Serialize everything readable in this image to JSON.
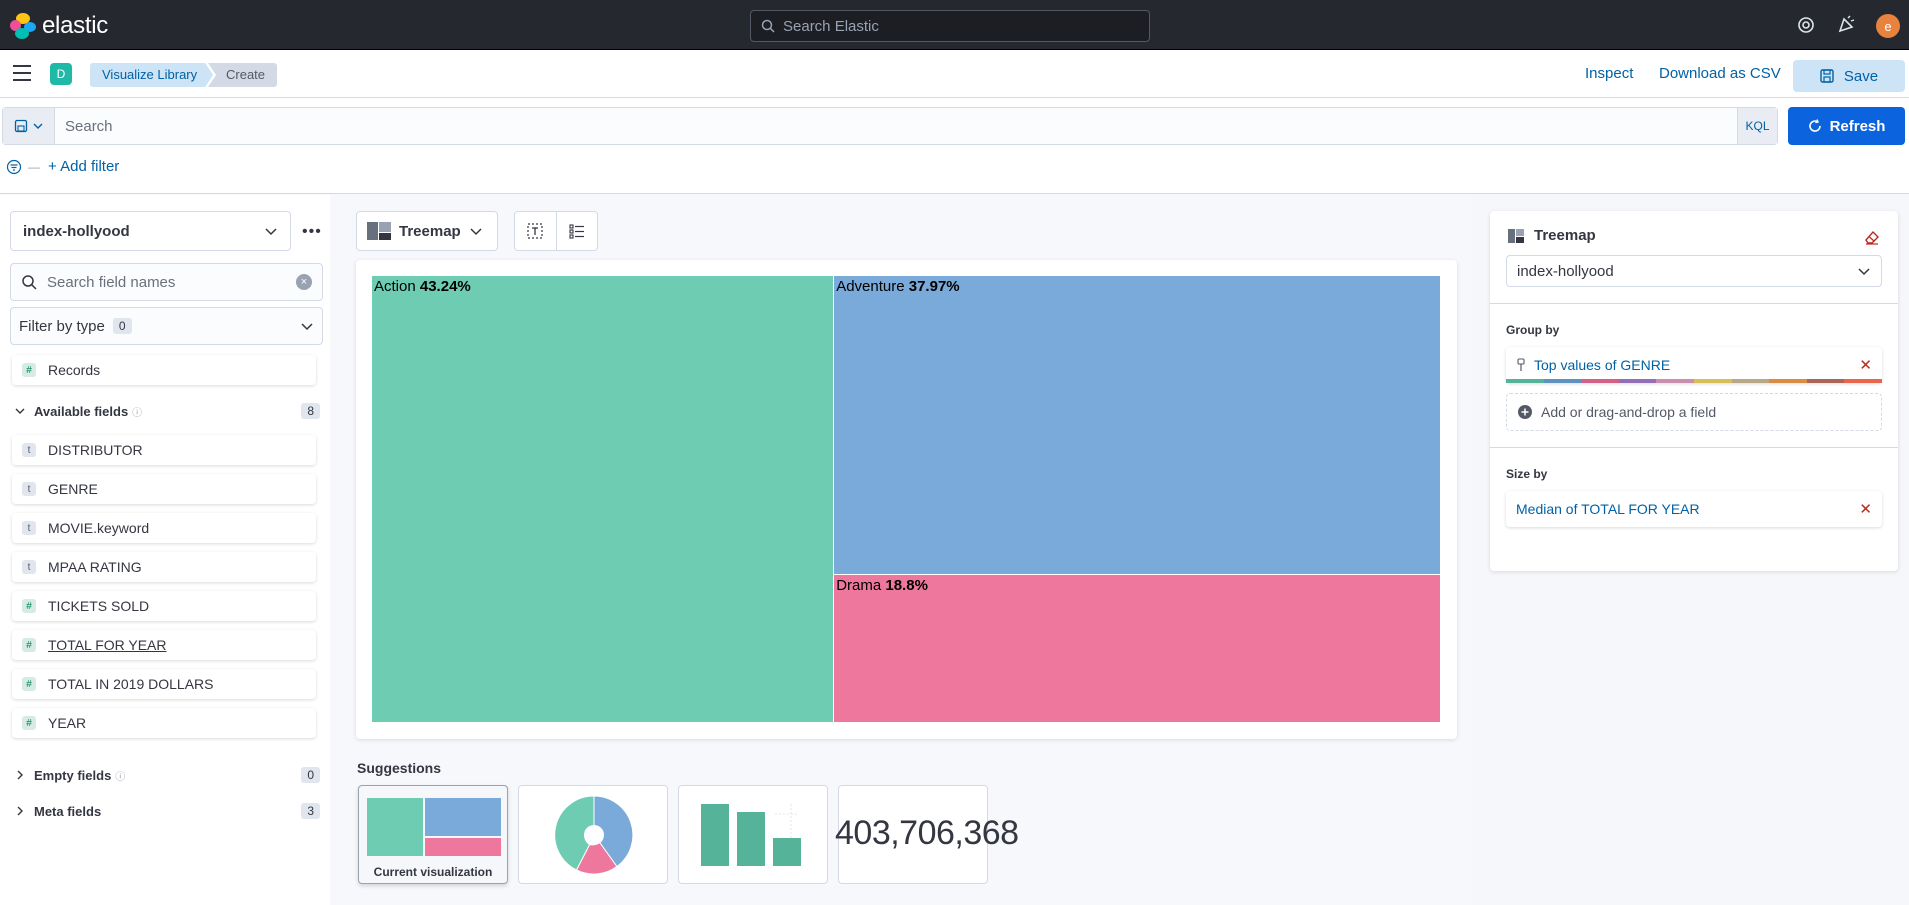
{
  "header": {
    "logo_text": "elastic",
    "search_placeholder": "Search Elastic",
    "avatar_initial": "e"
  },
  "appbar": {
    "space_initial": "D",
    "breadcrumbs": [
      "Visualize Library",
      "Create"
    ],
    "inspect_label": "Inspect",
    "download_label": "Download as CSV",
    "save_label": "Save"
  },
  "query": {
    "placeholder": "Search",
    "language": "KQL",
    "refresh_label": "Refresh",
    "add_filter_label": "+ Add filter"
  },
  "left": {
    "index_pattern": "index-hollyood",
    "field_search_placeholder": "Search field names",
    "filter_by_type_label": "Filter by type",
    "filter_by_type_count": "0",
    "records_label": "Records",
    "available_label": "Available fields",
    "available_count": "8",
    "fields": [
      {
        "name": "DISTRIBUTOR",
        "type": "t"
      },
      {
        "name": "GENRE",
        "type": "t"
      },
      {
        "name": "MOVIE.keyword",
        "type": "t"
      },
      {
        "name": "MPAA RATING",
        "type": "t"
      },
      {
        "name": "TICKETS SOLD",
        "type": "#"
      },
      {
        "name": "TOTAL FOR YEAR",
        "type": "#"
      },
      {
        "name": "TOTAL IN 2019 DOLLARS",
        "type": "#"
      },
      {
        "name": "YEAR",
        "type": "#"
      }
    ],
    "empty_label": "Empty fields",
    "empty_count": "0",
    "meta_label": "Meta fields",
    "meta_count": "3"
  },
  "center": {
    "chart_type_label": "Treemap",
    "suggestions_title": "Suggestions",
    "current_viz_label": "Current visualization",
    "metric_suggestion_value": "403,706,368"
  },
  "chart_data": {
    "type": "treemap",
    "title": "",
    "categories": [
      "Action",
      "Adventure",
      "Drama"
    ],
    "values": [
      43.24,
      37.97,
      18.8
    ],
    "value_labels": [
      "43.24%",
      "37.97%",
      "18.8%"
    ],
    "colors": [
      "#6dccb1",
      "#79aad9",
      "#ee789d"
    ]
  },
  "right": {
    "viz_title": "Treemap",
    "index_pattern": "index-hollyood",
    "group_by_label": "Group by",
    "group_by_value": "Top values of GENRE",
    "add_field_label": "Add or drag-and-drop a field",
    "size_by_label": "Size by",
    "size_by_value": "Median of TOTAL FOR YEAR",
    "palette": [
      "#54b399",
      "#6092c0",
      "#d36086",
      "#9170b8",
      "#ca8eae",
      "#d6bf57",
      "#b9a888",
      "#da8b45",
      "#aa6556",
      "#e7664c"
    ]
  }
}
